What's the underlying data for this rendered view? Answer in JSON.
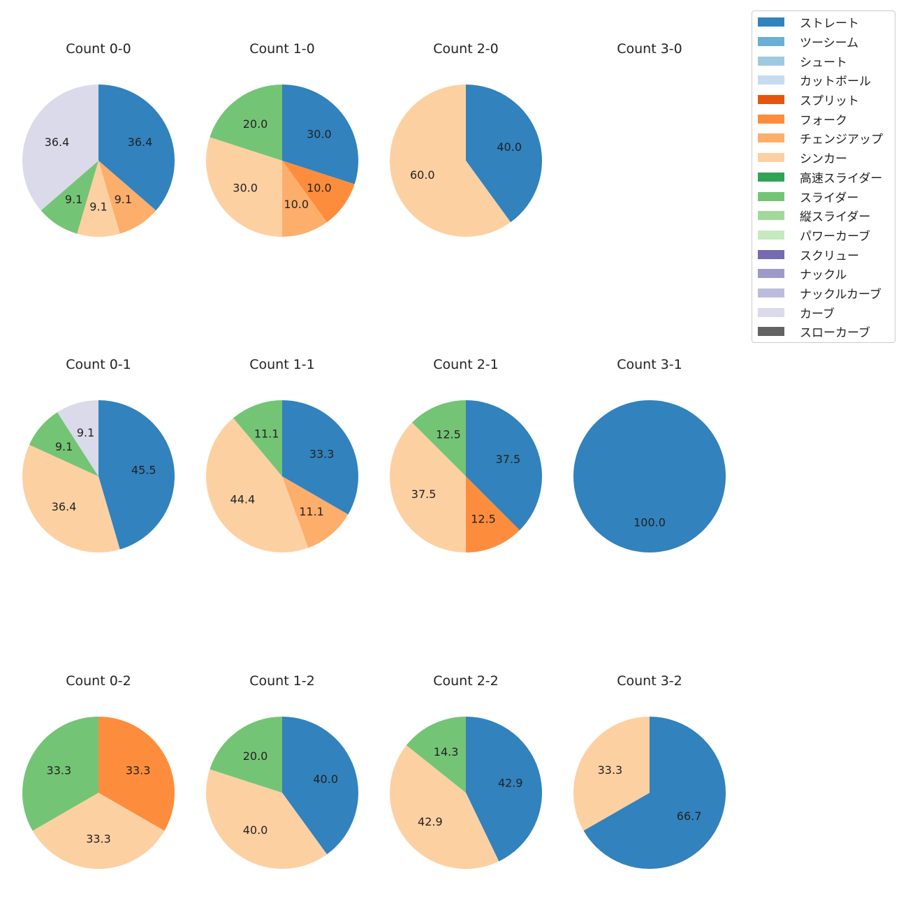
{
  "legend": [
    {
      "name": "ストレート",
      "color": "#3182bd"
    },
    {
      "name": "ツーシーム",
      "color": "#6baed6"
    },
    {
      "name": "シュート",
      "color": "#9ecae1"
    },
    {
      "name": "カットボール",
      "color": "#c6dbef"
    },
    {
      "name": "スプリット",
      "color": "#e6550d"
    },
    {
      "name": "フォーク",
      "color": "#fd8d3c"
    },
    {
      "name": "チェンジアップ",
      "color": "#fdae6b"
    },
    {
      "name": "シンカー",
      "color": "#fdd0a2"
    },
    {
      "name": "高速スライダー",
      "color": "#31a354"
    },
    {
      "name": "スライダー",
      "color": "#74c476"
    },
    {
      "name": "縦スライダー",
      "color": "#a1d99b"
    },
    {
      "name": "パワーカーブ",
      "color": "#c7e9c0"
    },
    {
      "name": "スクリュー",
      "color": "#756bb1"
    },
    {
      "name": "ナックル",
      "color": "#9e9ac8"
    },
    {
      "name": "ナックルカーブ",
      "color": "#bcbddc"
    },
    {
      "name": "カーブ",
      "color": "#dadaeb"
    },
    {
      "name": "スローカーブ",
      "color": "#636363"
    }
  ],
  "chart_data": [
    {
      "type": "pie",
      "title": "Count 0-0",
      "slices": [
        {
          "label": "ストレート",
          "value": 36.4
        },
        {
          "label": "チェンジアップ",
          "value": 9.1
        },
        {
          "label": "シンカー",
          "value": 9.1
        },
        {
          "label": "スライダー",
          "value": 9.1
        },
        {
          "label": "カーブ",
          "value": 36.4
        }
      ]
    },
    {
      "type": "pie",
      "title": "Count 1-0",
      "slices": [
        {
          "label": "ストレート",
          "value": 30.0
        },
        {
          "label": "フォーク",
          "value": 10.0
        },
        {
          "label": "チェンジアップ",
          "value": 10.0
        },
        {
          "label": "シンカー",
          "value": 30.0
        },
        {
          "label": "スライダー",
          "value": 20.0
        }
      ]
    },
    {
      "type": "pie",
      "title": "Count 2-0",
      "slices": [
        {
          "label": "ストレート",
          "value": 40.0
        },
        {
          "label": "シンカー",
          "value": 60.0
        }
      ]
    },
    {
      "type": "pie",
      "title": "Count 3-0",
      "slices": []
    },
    {
      "type": "pie",
      "title": "Count 0-1",
      "slices": [
        {
          "label": "ストレート",
          "value": 45.5
        },
        {
          "label": "シンカー",
          "value": 36.4
        },
        {
          "label": "スライダー",
          "value": 9.1
        },
        {
          "label": "カーブ",
          "value": 9.1
        }
      ]
    },
    {
      "type": "pie",
      "title": "Count 1-1",
      "slices": [
        {
          "label": "ストレート",
          "value": 33.3
        },
        {
          "label": "チェンジアップ",
          "value": 11.1
        },
        {
          "label": "シンカー",
          "value": 44.4
        },
        {
          "label": "スライダー",
          "value": 11.1
        }
      ]
    },
    {
      "type": "pie",
      "title": "Count 2-1",
      "slices": [
        {
          "label": "ストレート",
          "value": 37.5
        },
        {
          "label": "フォーク",
          "value": 12.5
        },
        {
          "label": "シンカー",
          "value": 37.5
        },
        {
          "label": "スライダー",
          "value": 12.5
        }
      ]
    },
    {
      "type": "pie",
      "title": "Count 3-1",
      "slices": [
        {
          "label": "ストレート",
          "value": 100.0
        }
      ]
    },
    {
      "type": "pie",
      "title": "Count 0-2",
      "slices": [
        {
          "label": "フォーク",
          "value": 33.3
        },
        {
          "label": "シンカー",
          "value": 33.3
        },
        {
          "label": "スライダー",
          "value": 33.3
        }
      ]
    },
    {
      "type": "pie",
      "title": "Count 1-2",
      "slices": [
        {
          "label": "ストレート",
          "value": 40.0
        },
        {
          "label": "シンカー",
          "value": 40.0
        },
        {
          "label": "スライダー",
          "value": 20.0
        }
      ]
    },
    {
      "type": "pie",
      "title": "Count 2-2",
      "slices": [
        {
          "label": "ストレート",
          "value": 42.9
        },
        {
          "label": "シンカー",
          "value": 42.9
        },
        {
          "label": "スライダー",
          "value": 14.3
        }
      ]
    },
    {
      "type": "pie",
      "title": "Count 3-2",
      "slices": [
        {
          "label": "ストレート",
          "value": 66.7
        },
        {
          "label": "シンカー",
          "value": 33.3
        }
      ]
    }
  ]
}
